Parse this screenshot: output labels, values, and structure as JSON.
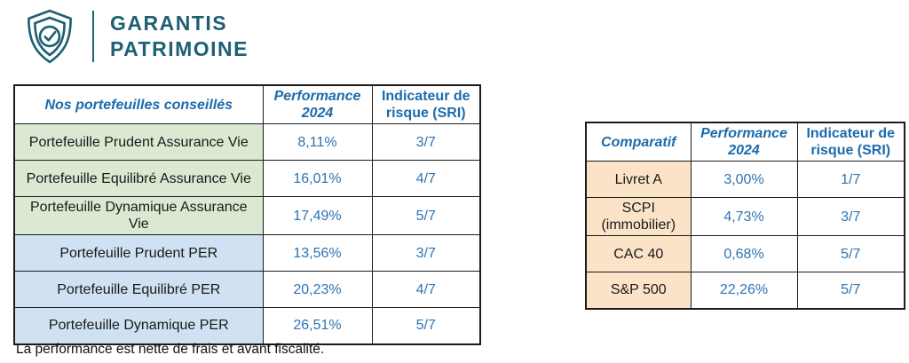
{
  "logo": {
    "brand_line1": "GARANTIS",
    "brand_line2": "PATRIMOINE",
    "icon": "shield-check-icon"
  },
  "portfolio_table": {
    "headers": [
      "Nos portefeuilles conseillés",
      "Performance 2024",
      "Indicateur de risque (SRI)"
    ],
    "rows": [
      {
        "label": "Portefeuille Prudent Assurance Vie",
        "performance": "8,11%",
        "sri": "3/7",
        "group": "assurance-vie"
      },
      {
        "label": "Portefeuille Equilibré Assurance Vie",
        "performance": "16,01%",
        "sri": "4/7",
        "group": "assurance-vie"
      },
      {
        "label": "Portefeuille Dynamique Assurance Vie",
        "performance": "17,49%",
        "sri": "5/7",
        "group": "assurance-vie"
      },
      {
        "label": "Portefeuille Prudent PER",
        "performance": "13,56%",
        "sri": "3/7",
        "group": "per"
      },
      {
        "label": "Portefeuille Equilibré PER",
        "performance": "20,23%",
        "sri": "4/7",
        "group": "per"
      },
      {
        "label": "Portefeuille Dynamique PER",
        "performance": "26,51%",
        "sri": "5/7",
        "group": "per"
      }
    ]
  },
  "comparison_table": {
    "headers": [
      "Comparatif",
      "Performance 2024",
      "Indicateur de risque (SRI)"
    ],
    "rows": [
      {
        "label": "Livret A",
        "performance": "3,00%",
        "sri": "1/7",
        "group": "comparatif"
      },
      {
        "label": "SCPI (immobilier)",
        "performance": "4,73%",
        "sri": "3/7",
        "group": "comparatif"
      },
      {
        "label": "CAC 40",
        "performance": "0,68%",
        "sri": "5/7",
        "group": "comparatif"
      },
      {
        "label": "S&P 500",
        "performance": "22,26%",
        "sri": "5/7",
        "group": "comparatif"
      }
    ]
  },
  "footnote": "La performance est nette de frais et avant fiscalité.",
  "colors": {
    "teal": "#1e5f73",
    "header_blue": "#1c6bac",
    "value_blue": "#2d74b5",
    "green_bg": "#dbe8d2",
    "blue_bg": "#cfe1f2",
    "orange_bg": "#fbe3c8",
    "border_color": "#1b1b1b"
  }
}
